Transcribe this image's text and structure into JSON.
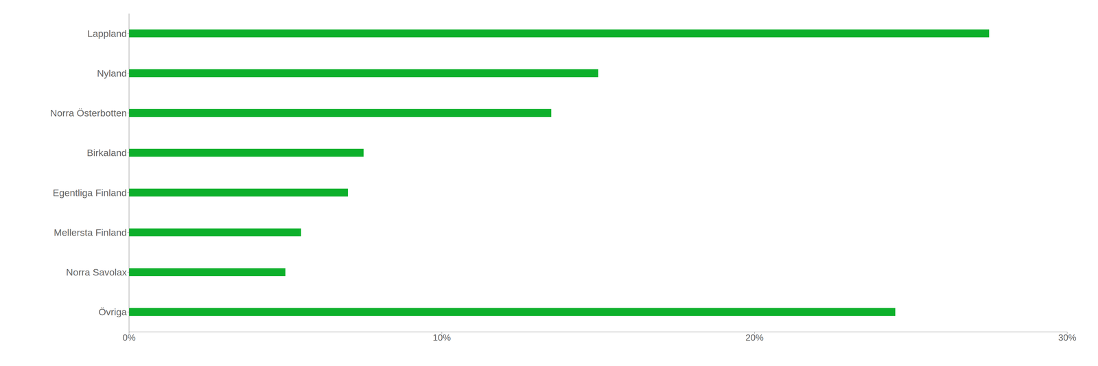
{
  "chart_data": {
    "type": "bar",
    "orientation": "horizontal",
    "categories": [
      "Lappland",
      "Nyland",
      "Norra Österbotten",
      "Birkaland",
      "Egentliga Finland",
      "Mellersta Finland",
      "Norra Savolax",
      "Övriga"
    ],
    "values": [
      27.5,
      15.0,
      13.5,
      7.5,
      7.0,
      5.5,
      5.0,
      24.5
    ],
    "color": "#0db02b",
    "xlim": [
      0,
      30
    ],
    "xticks": [
      {
        "value": 0,
        "label": "0%"
      },
      {
        "value": 10,
        "label": "10%"
      },
      {
        "value": 20,
        "label": "20%"
      },
      {
        "value": 30,
        "label": "30%"
      }
    ],
    "grid": false
  }
}
